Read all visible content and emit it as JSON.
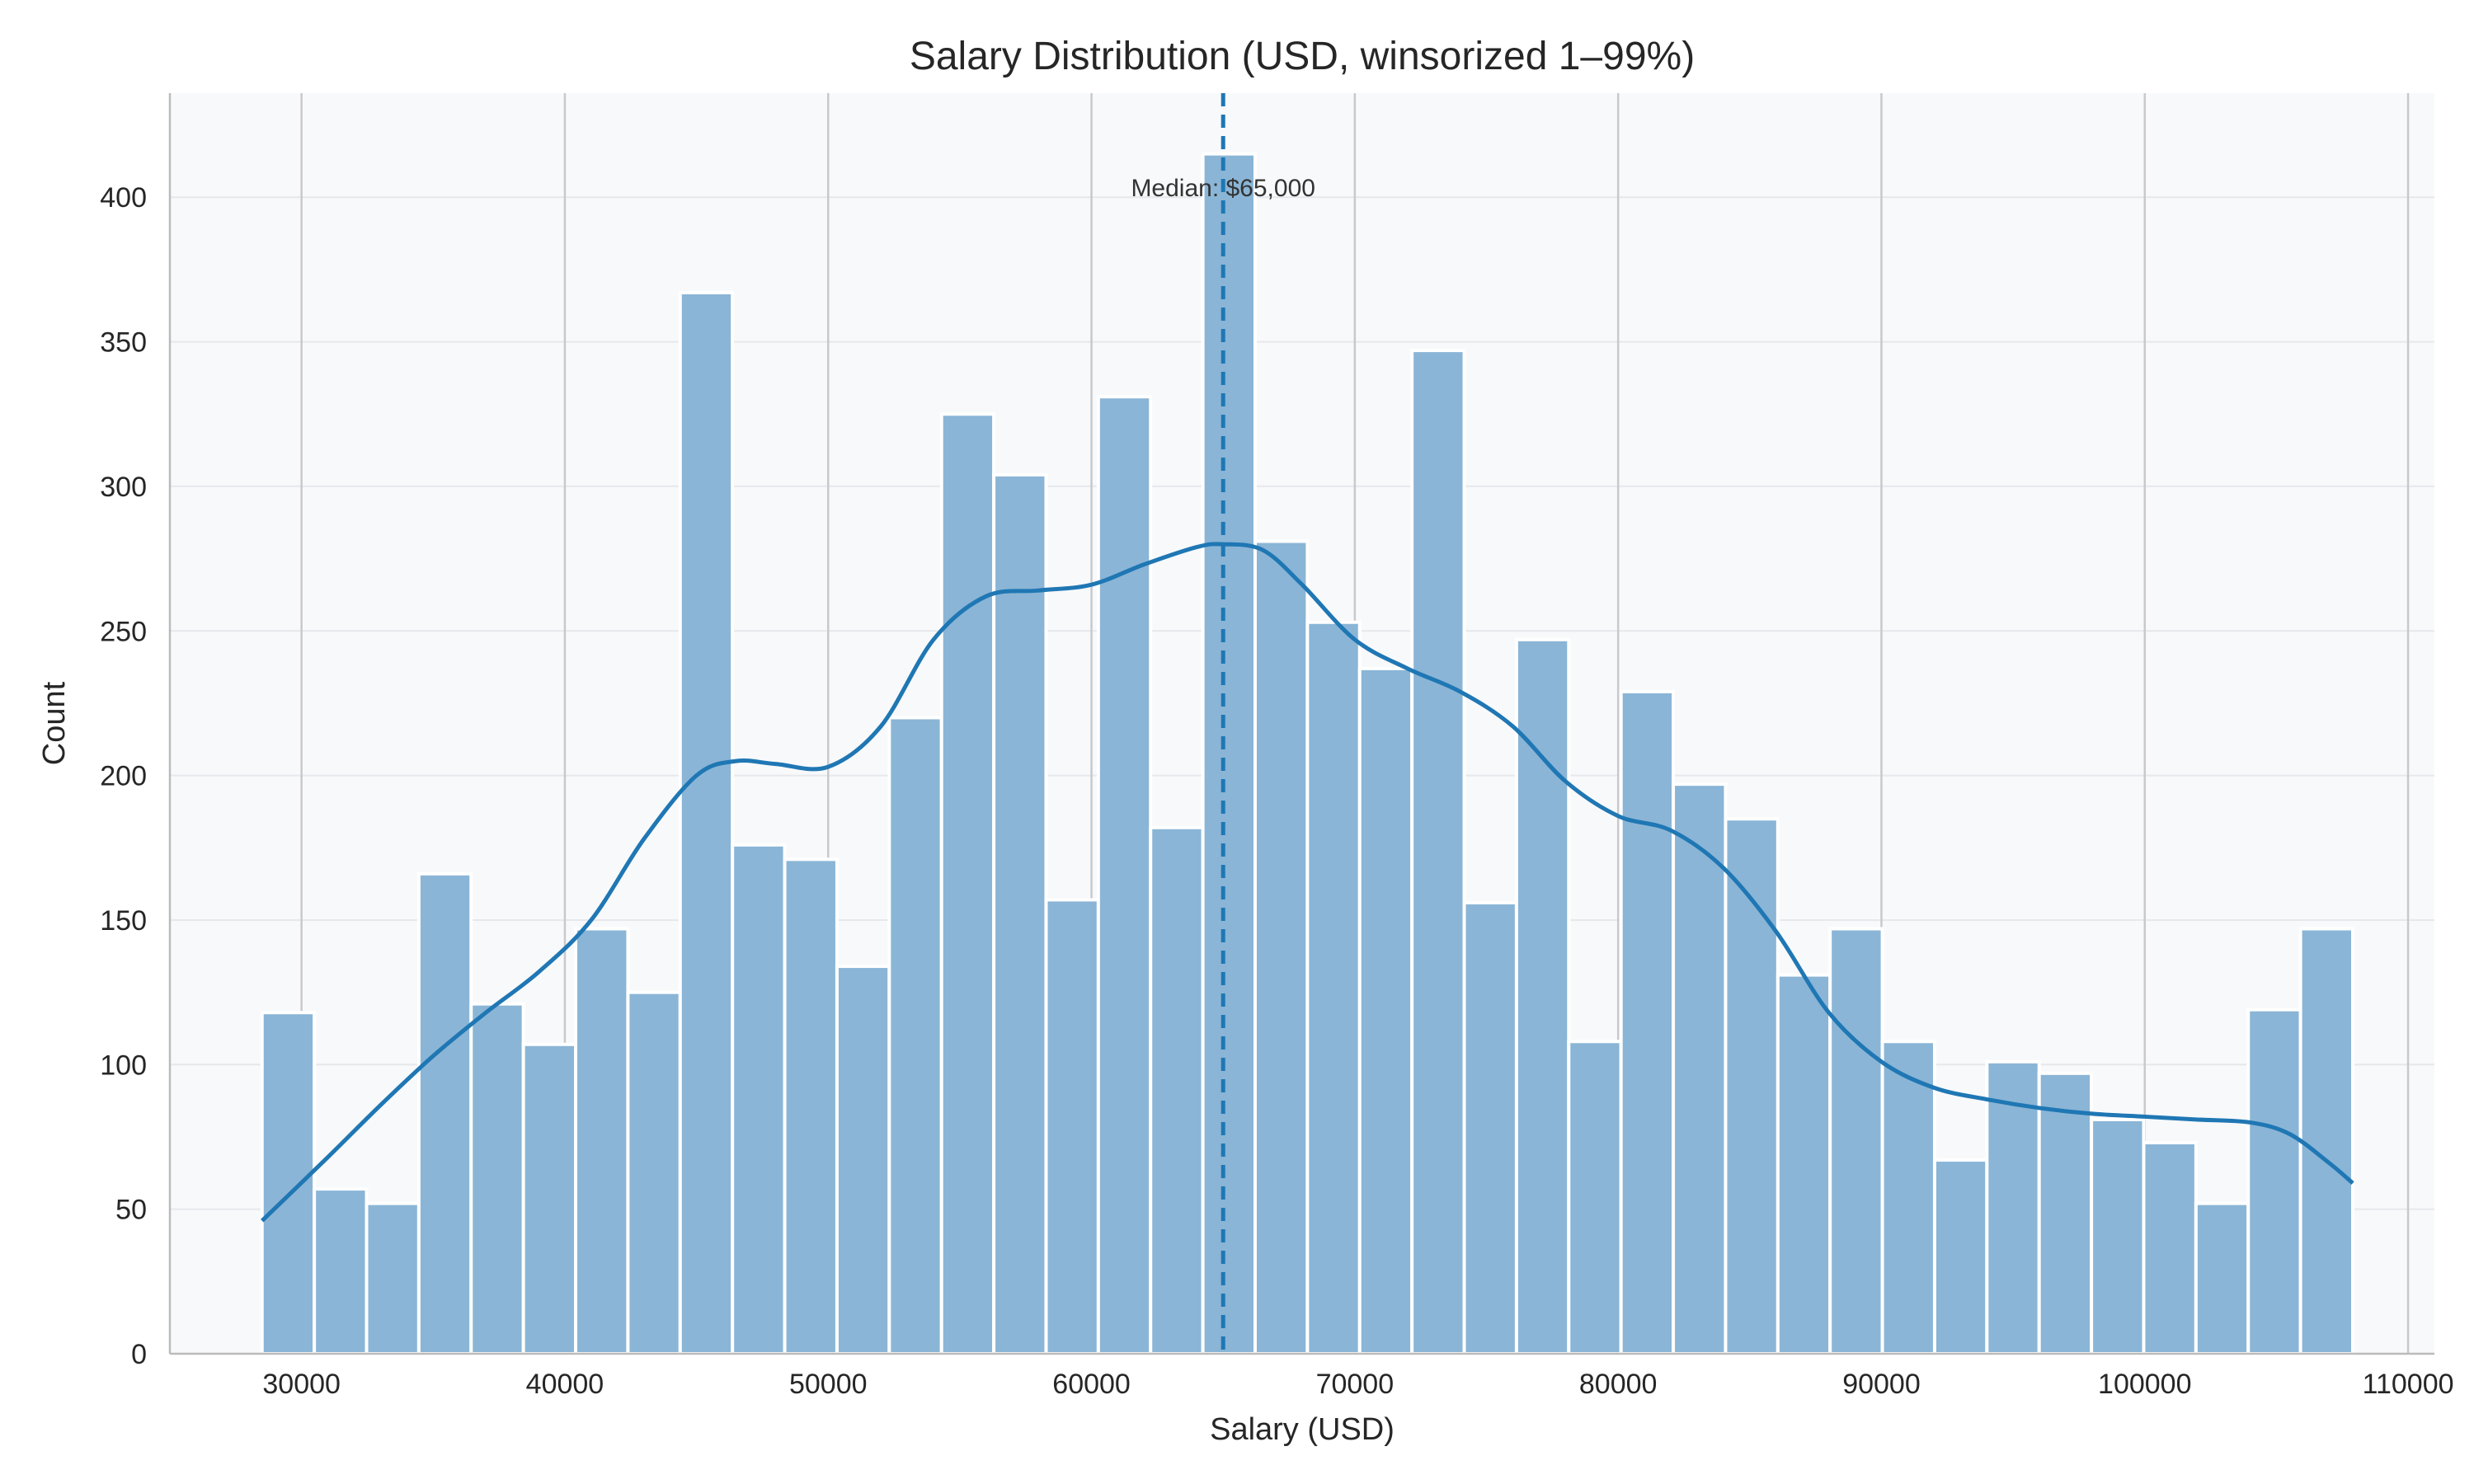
{
  "colors": {
    "plot_background": "#f8f9fb",
    "bar_fill": "#8ab5d6",
    "bar_edge": "#ffffff",
    "kde_line": "#1f77b4",
    "median_line": "#1f77b4",
    "gridline_major": "#c9c9cc",
    "gridline_minor": "#e6e8ec",
    "axis_line": "#bbbbbb"
  },
  "chart_data": {
    "type": "bar",
    "title": "Salary Distribution (USD, winsorized 1–99%)",
    "xlabel": "Salary (USD)",
    "ylabel": "Count",
    "xlim": [
      25000,
      111000
    ],
    "ylim": [
      0,
      436
    ],
    "x_ticks": [
      30000,
      40000,
      50000,
      60000,
      70000,
      80000,
      90000,
      100000,
      110000
    ],
    "y_ticks": [
      0,
      50,
      100,
      150,
      200,
      250,
      300,
      350,
      400
    ],
    "grid": "on",
    "histogram": {
      "range": [
        28500,
        107900
      ],
      "bin_count": 40,
      "counts": [
        118,
        57,
        52,
        166,
        121,
        107,
        147,
        125,
        367,
        176,
        171,
        134,
        220,
        325,
        304,
        157,
        331,
        182,
        415,
        281,
        253,
        237,
        347,
        156,
        247,
        108,
        229,
        197,
        185,
        131,
        147,
        108,
        67,
        101,
        97,
        81,
        73,
        52,
        119,
        147
      ]
    },
    "kde": {
      "x": [
        28500,
        31000,
        33000,
        35000,
        37000,
        39000,
        41000,
        43000,
        45000,
        46500,
        48000,
        50000,
        52000,
        54000,
        56000,
        58000,
        60000,
        62000,
        64000,
        65000,
        66500,
        68000,
        70000,
        72000,
        74000,
        76000,
        78000,
        80000,
        82000,
        84000,
        86000,
        88000,
        90000,
        92000,
        94000,
        96000,
        98000,
        100000,
        102000,
        104000,
        105500,
        107000,
        107900
      ],
      "y": [
        46,
        68,
        86,
        103,
        118,
        132,
        150,
        178,
        200,
        205,
        204,
        203,
        217,
        247,
        262,
        264,
        266,
        273,
        279,
        280,
        278,
        266,
        247,
        237,
        229,
        217,
        198,
        186,
        181,
        168,
        146,
        118,
        101,
        92,
        88,
        85,
        83,
        82,
        81,
        80,
        76,
        66,
        59
      ]
    },
    "median": 65000,
    "annotation": "Median: $65,000"
  }
}
